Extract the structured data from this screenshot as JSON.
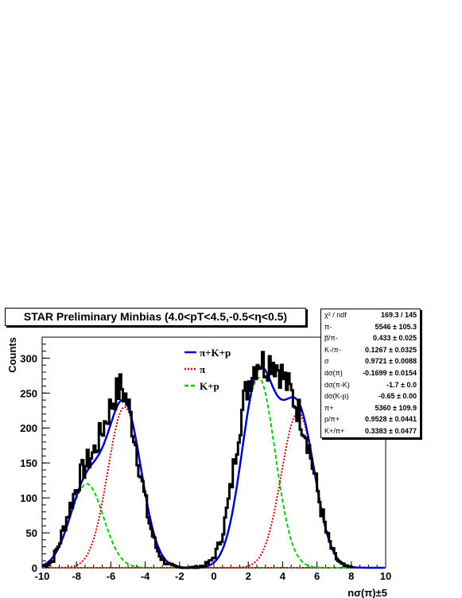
{
  "chart_data": {
    "type": "line",
    "title": "STAR Preliminary Minbias (4.0<pT<4.5,-0.5<η<0.5)",
    "xlabel": "nσ(π)±5",
    "ylabel": "Counts",
    "xlim": [
      -10,
      10
    ],
    "ylim": [
      0,
      330
    ],
    "xticks": [
      -10,
      -8,
      -6,
      -4,
      -2,
      0,
      2,
      4,
      6,
      8,
      10
    ],
    "yticks": [
      0,
      50,
      100,
      150,
      200,
      250,
      300
    ],
    "legend": {
      "position": "top-center",
      "entries": [
        {
          "label": "π+K+p",
          "color": "#0000cc",
          "style": "solid"
        },
        {
          "label": "π",
          "color": "#cc0000",
          "style": "dotted"
        },
        {
          "label": "K+p",
          "color": "#00cc00",
          "style": "dashed"
        }
      ]
    },
    "fit_components": [
      {
        "name": "K+p (negative)",
        "center": -7.4,
        "amplitude": 120,
        "sigma": 0.97,
        "color": "#00cc00",
        "style": "dashed"
      },
      {
        "name": "π (negative)",
        "center": -5.2,
        "amplitude": 230,
        "sigma": 0.97,
        "color": "#cc0000",
        "style": "dotted"
      },
      {
        "name": "K+p (positive)",
        "center": 2.6,
        "amplitude": 272,
        "sigma": 0.97,
        "color": "#00cc00",
        "style": "dashed"
      },
      {
        "name": "π (positive)",
        "center": 4.9,
        "amplitude": 222,
        "sigma": 0.97,
        "color": "#cc0000",
        "style": "dotted"
      }
    ],
    "histogram_envelope": {
      "x": [
        -9.8,
        -9.4,
        -9.0,
        -8.6,
        -8.2,
        -7.8,
        -7.4,
        -7.0,
        -6.6,
        -6.2,
        -5.8,
        -5.4,
        -5.0,
        -4.6,
        -4.2,
        -3.8,
        -3.4,
        -3.0,
        -2.6,
        -2.2,
        -1.8,
        -1.4,
        -1.0,
        -0.6,
        -0.2,
        0.2,
        0.6,
        1.0,
        1.4,
        1.8,
        2.2,
        2.6,
        3.0,
        3.4,
        3.8,
        4.2,
        4.6,
        5.0,
        5.4,
        5.8,
        6.2,
        6.6,
        7.0,
        7.4,
        7.8
      ],
      "y": [
        3,
        10,
        35,
        68,
        100,
        130,
        150,
        165,
        190,
        218,
        245,
        260,
        235,
        185,
        125,
        70,
        32,
        12,
        4,
        1,
        0,
        0,
        1,
        3,
        8,
        25,
        60,
        115,
        190,
        245,
        280,
        300,
        290,
        300,
        285,
        265,
        245,
        220,
        190,
        140,
        90,
        45,
        18,
        5,
        1
      ]
    },
    "stats_box": {
      "rows": [
        {
          "label": "χ² / ndf",
          "value": "169.3 / 145"
        },
        {
          "label": "π-",
          "value": "5546 ± 105.3"
        },
        {
          "label": "p̅/π-",
          "value": "0.433 ± 0.025"
        },
        {
          "label": "K-/π-",
          "value": "0.1267 ± 0.0325"
        },
        {
          "label": "σ",
          "value": "0.9721 ± 0.0088"
        },
        {
          "label": "dσ(π)",
          "value": "-0.1699 ± 0.0154"
        },
        {
          "label": "dσ(π-K)",
          "value": "-1.7 ± 0.0"
        },
        {
          "label": "dσ(K-p)",
          "value": "-0.65 ± 0.00"
        },
        {
          "label": "π+",
          "value": "5360 ± 109.9"
        },
        {
          "label": "p/π+",
          "value": "0.9528 ± 0.0441"
        },
        {
          "label": "K+/π+",
          "value": "0.3383 ± 0.0477"
        }
      ]
    }
  }
}
